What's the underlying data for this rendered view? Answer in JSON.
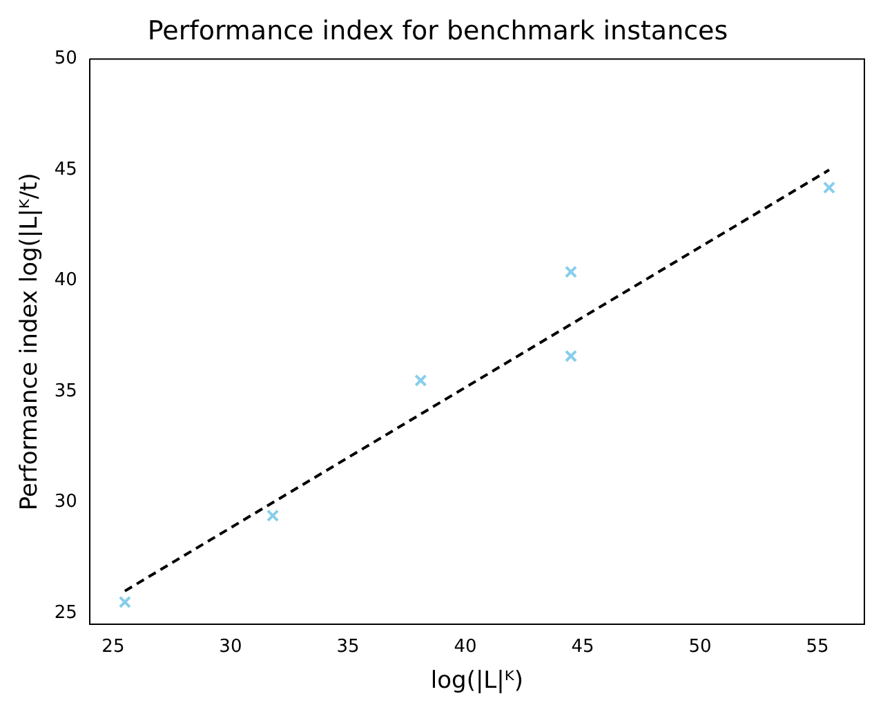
{
  "chart_data": {
    "type": "scatter",
    "title": "Performance index for benchmark instances",
    "xlabel": "log(|L|ᴷ)",
    "ylabel": "Performance index log(|L|ᴷ/t)",
    "xlim": [
      24,
      57
    ],
    "xticks": [
      25,
      30,
      35,
      40,
      45,
      50,
      55
    ],
    "ylim": [
      24.5,
      50
    ],
    "yticks": [
      25,
      30,
      35,
      40,
      45,
      50
    ],
    "grid": false,
    "legend": false,
    "series": [
      {
        "color": "#87ceeb",
        "marker": "cross",
        "x": [
          25.5,
          31.8,
          38.1,
          44.5,
          44.5,
          55.5
        ],
        "values": [
          25.5,
          29.4,
          35.5,
          36.6,
          40.4,
          44.2
        ]
      },
      {
        "type": "line",
        "color": "#000000",
        "line_style": "dashed",
        "marker": "none",
        "x": [
          25.5,
          55.5
        ],
        "values": [
          26,
          45
        ]
      }
    ]
  }
}
